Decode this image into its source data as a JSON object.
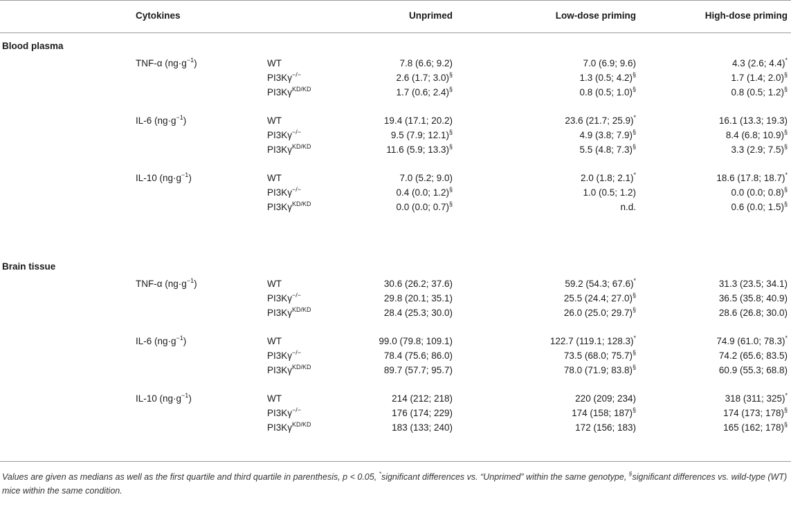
{
  "header": {
    "cytokines": "Cytokines",
    "unprimed": "Unprimed",
    "low_dose": "Low-dose priming",
    "high_dose": "High-dose priming"
  },
  "genotypes": {
    "wt": "WT",
    "ko_base": "PI3Kγ",
    "ko_sup": "−/−",
    "kd_base": "PI3Kγ",
    "kd_sup": "KD/KD"
  },
  "sections": [
    {
      "name": "Blood plasma",
      "groups": [
        {
          "label_base": "TNF-α (ng·g",
          "label_sup": "−1",
          "label_end": ")",
          "rows": [
            {
              "unprimed": "7.8 (6.6; 9.2)",
              "unprimed_mark": "",
              "low": "7.0 (6.9; 9.6)",
              "low_mark": "",
              "high": "4.3 (2.6; 4.4)",
              "high_mark": "*"
            },
            {
              "unprimed": "2.6 (1.7; 3.0)",
              "unprimed_mark": "§",
              "low": "1.3 (0.5; 4.2)",
              "low_mark": "§",
              "high": "1.7 (1.4; 2.0)",
              "high_mark": "§"
            },
            {
              "unprimed": "1.7 (0.6; 2.4)",
              "unprimed_mark": "§",
              "low": "0.8 (0.5; 1.0)",
              "low_mark": "§",
              "high": "0.8 (0.5; 1.2)",
              "high_mark": "§"
            }
          ]
        },
        {
          "label_base": "IL-6 (ng·g",
          "label_sup": "−1",
          "label_end": ")",
          "rows": [
            {
              "unprimed": "19.4 (17.1; 20.2)",
              "unprimed_mark": "",
              "low": "23.6 (21.7; 25.9)",
              "low_mark": "*",
              "high": "16.1 (13.3; 19.3)",
              "high_mark": ""
            },
            {
              "unprimed": "9.5 (7.9; 12.1)",
              "unprimed_mark": "§",
              "low": "4.9 (3.8; 7.9)",
              "low_mark": "§",
              "high": "8.4 (6.8; 10.9)",
              "high_mark": "§"
            },
            {
              "unprimed": "11.6 (5.9; 13.3)",
              "unprimed_mark": "§",
              "low": "5.5 (4.8; 7.3)",
              "low_mark": "§",
              "high": "3.3 (2.9; 7.5)",
              "high_mark": "§"
            }
          ]
        },
        {
          "label_base": "IL-10 (ng·g",
          "label_sup": "−1",
          "label_end": ")",
          "rows": [
            {
              "unprimed": "7.0 (5.2; 9.0)",
              "unprimed_mark": "",
              "low": "2.0 (1.8; 2.1)",
              "low_mark": "*",
              "high": "18.6 (17.8; 18.7)",
              "high_mark": "*"
            },
            {
              "unprimed": "0.4 (0.0; 1.2)",
              "unprimed_mark": "§",
              "low": "1.0 (0.5; 1.2)",
              "low_mark": "",
              "high": "0.0 (0.0; 0.8)",
              "high_mark": "§"
            },
            {
              "unprimed": "0.0 (0.0; 0.7)",
              "unprimed_mark": "§",
              "low": "n.d.",
              "low_mark": "",
              "high": "0.6 (0.0; 1.5)",
              "high_mark": "§"
            }
          ]
        }
      ]
    },
    {
      "name": "Brain tissue",
      "groups": [
        {
          "label_base": "TNF-α (ng·g",
          "label_sup": "−1",
          "label_end": ")",
          "rows": [
            {
              "unprimed": "30.6 (26.2; 37.6)",
              "unprimed_mark": "",
              "low": "59.2 (54.3; 67.6)",
              "low_mark": "*",
              "high": "31.3 (23.5; 34.1)",
              "high_mark": ""
            },
            {
              "unprimed": "29.8 (20.1; 35.1)",
              "unprimed_mark": "",
              "low": "25.5 (24.4; 27.0)",
              "low_mark": "§",
              "high": "36.5 (35.8; 40.9)",
              "high_mark": ""
            },
            {
              "unprimed": "28.4 (25.3; 30.0)",
              "unprimed_mark": "",
              "low": "26.0 (25.0; 29.7)",
              "low_mark": "§",
              "high": "28.6 (26.8; 30.0)",
              "high_mark": ""
            }
          ]
        },
        {
          "label_base": "IL-6 (ng·g",
          "label_sup": "−1",
          "label_end": ")",
          "rows": [
            {
              "unprimed": "99.0 (79.8; 109.1)",
              "unprimed_mark": "",
              "low": "122.7 (119.1; 128.3)",
              "low_mark": "*",
              "high": "74.9 (61.0; 78.3)",
              "high_mark": "*"
            },
            {
              "unprimed": "78.4 (75.6; 86.0)",
              "unprimed_mark": "",
              "low": "73.5 (68.0; 75.7)",
              "low_mark": "§",
              "high": "74.2 (65.6; 83.5)",
              "high_mark": ""
            },
            {
              "unprimed": "89.7 (57.7; 95.7)",
              "unprimed_mark": "",
              "low": "78.0 (71.9; 83.8)",
              "low_mark": "§",
              "high": "60.9 (55.3; 68.8)",
              "high_mark": ""
            }
          ]
        },
        {
          "label_base": "IL-10 (ng·g",
          "label_sup": "−1",
          "label_end": ")",
          "rows": [
            {
              "unprimed": "214 (212; 218)",
              "unprimed_mark": "",
              "low": "220 (209; 234)",
              "low_mark": "",
              "high": "318 (311; 325)",
              "high_mark": "*"
            },
            {
              "unprimed": "176 (174; 229)",
              "unprimed_mark": "",
              "low": "174 (158; 187)",
              "low_mark": "§",
              "high": "174 (173; 178)",
              "high_mark": "§"
            },
            {
              "unprimed": "183 (133; 240)",
              "unprimed_mark": "",
              "low": "172 (156; 183)",
              "low_mark": "",
              "high": "165 (162; 178)",
              "high_mark": "§"
            }
          ]
        }
      ]
    }
  ],
  "footnote": {
    "part1": "Values are given as medians as well as the first quartile and third quartile in parenthesis, p < 0.05, ",
    "star": "*",
    "part2": "significant differences vs. “Unprimed” within the same genotype, ",
    "section_mark": "§",
    "part3": "significant differences vs. wild-type (WT) mice within the same condition."
  }
}
